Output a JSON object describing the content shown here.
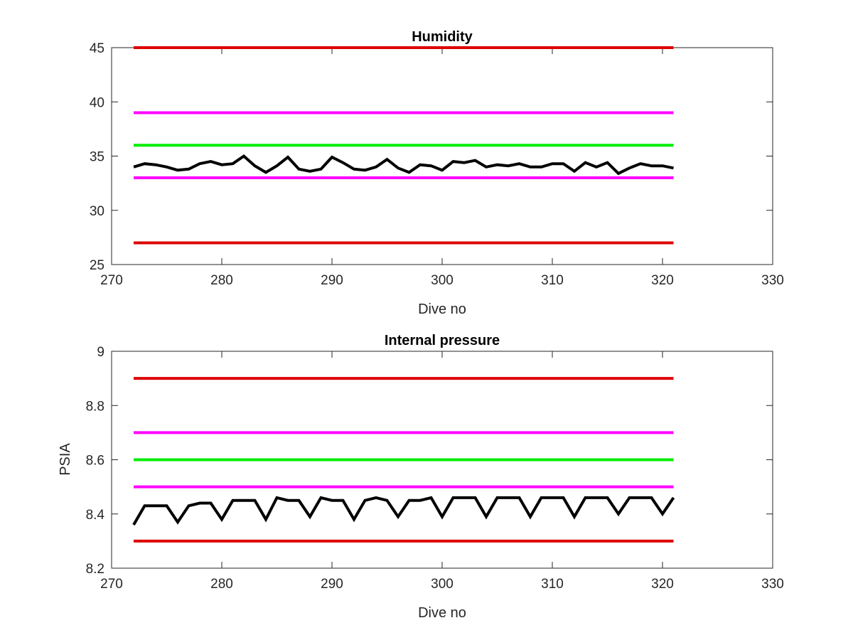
{
  "chart_data": [
    {
      "type": "line",
      "title": "Humidity",
      "xlabel": "Dive no",
      "ylabel": "",
      "xlim": [
        270,
        330
      ],
      "ylim": [
        25,
        45
      ],
      "xticks": [
        "270",
        "280",
        "290",
        "300",
        "310",
        "320",
        "330"
      ],
      "yticks": [
        "25",
        "30",
        "35",
        "40",
        "45"
      ],
      "grid": false,
      "thresholds": [
        {
          "color": "#dd0000",
          "x": [
            272,
            321
          ],
          "y": 45
        },
        {
          "color": "#ff00ff",
          "x": [
            272,
            321
          ],
          "y": 39
        },
        {
          "color": "#00ee00",
          "x": [
            272,
            321
          ],
          "y": 36
        },
        {
          "color": "#ff00ff",
          "x": [
            272,
            321
          ],
          "y": 33
        },
        {
          "color": "#dd0000",
          "x": [
            272,
            321
          ],
          "y": 27
        }
      ],
      "series": [
        {
          "color": "#000000",
          "x": [
            272,
            273,
            274,
            275,
            276,
            277,
            278,
            279,
            280,
            281,
            282,
            283,
            284,
            285,
            286,
            287,
            288,
            289,
            290,
            291,
            292,
            293,
            294,
            295,
            296,
            297,
            298,
            299,
            300,
            301,
            302,
            303,
            304,
            305,
            306,
            307,
            308,
            309,
            310,
            311,
            312,
            313,
            314,
            315,
            316,
            317,
            318,
            319,
            320,
            321
          ],
          "values": [
            34.0,
            34.3,
            34.2,
            34.0,
            33.7,
            33.8,
            34.3,
            34.5,
            34.2,
            34.3,
            35.0,
            34.1,
            33.5,
            34.1,
            34.9,
            33.8,
            33.6,
            33.8,
            34.9,
            34.4,
            33.8,
            33.7,
            34.0,
            34.7,
            33.9,
            33.5,
            34.2,
            34.1,
            33.7,
            34.5,
            34.4,
            34.6,
            34.0,
            34.2,
            34.1,
            34.3,
            34.0,
            34.0,
            34.3,
            34.3,
            33.6,
            34.4,
            34.0,
            34.4,
            33.4,
            33.9,
            34.3,
            34.1,
            34.1,
            33.9
          ]
        }
      ]
    },
    {
      "type": "line",
      "title": "Internal pressure",
      "xlabel": "Dive no",
      "ylabel": "PSIA",
      "xlim": [
        270,
        330
      ],
      "ylim": [
        8.2,
        9.0
      ],
      "xticks": [
        "270",
        "280",
        "290",
        "300",
        "310",
        "320",
        "330"
      ],
      "yticks": [
        "8.2",
        "8.4",
        "8.6",
        "8.8",
        "9"
      ],
      "grid": false,
      "thresholds": [
        {
          "color": "#dd0000",
          "x": [
            272,
            321
          ],
          "y": 8.9
        },
        {
          "color": "#ff00ff",
          "x": [
            272,
            321
          ],
          "y": 8.7
        },
        {
          "color": "#00ee00",
          "x": [
            272,
            321
          ],
          "y": 8.6
        },
        {
          "color": "#ff00ff",
          "x": [
            272,
            321
          ],
          "y": 8.5
        },
        {
          "color": "#dd0000",
          "x": [
            272,
            321
          ],
          "y": 8.3
        }
      ],
      "series": [
        {
          "color": "#000000",
          "x": [
            272,
            273,
            274,
            275,
            276,
            277,
            278,
            279,
            280,
            281,
            282,
            283,
            284,
            285,
            286,
            287,
            288,
            289,
            290,
            291,
            292,
            293,
            294,
            295,
            296,
            297,
            298,
            299,
            300,
            301,
            302,
            303,
            304,
            305,
            306,
            307,
            308,
            309,
            310,
            311,
            312,
            313,
            314,
            315,
            316,
            317,
            318,
            319,
            320,
            321
          ],
          "values": [
            8.36,
            8.43,
            8.43,
            8.43,
            8.37,
            8.43,
            8.44,
            8.44,
            8.38,
            8.45,
            8.45,
            8.45,
            8.38,
            8.46,
            8.45,
            8.45,
            8.39,
            8.46,
            8.45,
            8.45,
            8.38,
            8.45,
            8.46,
            8.45,
            8.39,
            8.45,
            8.45,
            8.46,
            8.39,
            8.46,
            8.46,
            8.46,
            8.39,
            8.46,
            8.46,
            8.46,
            8.39,
            8.46,
            8.46,
            8.46,
            8.39,
            8.46,
            8.46,
            8.46,
            8.4,
            8.46,
            8.46,
            8.46,
            8.4,
            8.46
          ]
        }
      ]
    }
  ]
}
